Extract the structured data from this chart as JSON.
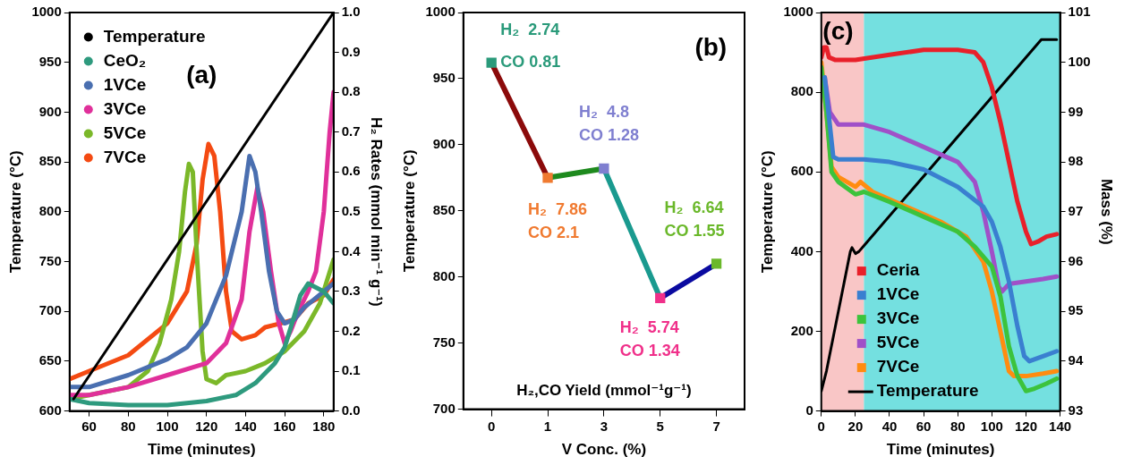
{
  "chart_data": [
    {
      "type": "line",
      "xlabel": "Time (minutes)",
      "ylabel": "Temperature (°C)",
      "y2label": "H₂ Rates (mmol min⁻¹ g⁻¹)",
      "xlim": [
        50,
        185
      ],
      "xticks": [
        60,
        80,
        100,
        120,
        140,
        160,
        180
      ],
      "ylim": [
        600,
        1000
      ],
      "yticks": [
        600,
        650,
        700,
        750,
        800,
        850,
        900,
        950,
        1000
      ],
      "y2lim": [
        0,
        1
      ],
      "y2ticks": [
        {
          "value": 0,
          "label": "0.0"
        },
        0.1,
        0.2,
        0.3,
        0.4,
        0.5,
        0.6,
        0.7,
        0.8,
        0.9,
        {
          "value": 1,
          "label": "1.0"
        }
      ],
      "legend": "top left",
      "annotations": [
        "(a)"
      ],
      "series": [
        {
          "name": "Temperature",
          "color": "#000000",
          "axis": "y",
          "x": [
            52,
            185
          ],
          "values": [
            612,
            1000
          ]
        },
        {
          "name": "CeO₂",
          "color": "#2e9a7e",
          "axis": "y2",
          "x": [
            50,
            60,
            80,
            100,
            120,
            135,
            145,
            155,
            160,
            165,
            168,
            172,
            176,
            180,
            185
          ],
          "values": [
            0.03,
            0.02,
            0.015,
            0.015,
            0.025,
            0.04,
            0.07,
            0.12,
            0.16,
            0.24,
            0.29,
            0.32,
            0.31,
            0.3,
            0.27
          ]
        },
        {
          "name": "1VCe",
          "color": "#4a6fb0",
          "axis": "y2",
          "x": [
            50,
            60,
            80,
            100,
            110,
            120,
            130,
            138,
            142,
            145,
            148,
            152,
            156,
            160,
            165,
            170,
            175,
            180,
            185
          ],
          "values": [
            0.06,
            0.06,
            0.09,
            0.13,
            0.16,
            0.22,
            0.34,
            0.5,
            0.64,
            0.6,
            0.5,
            0.35,
            0.25,
            0.22,
            0.23,
            0.26,
            0.28,
            0.3,
            0.32
          ]
        },
        {
          "name": "3VCe",
          "color": "#e0309a",
          "axis": "y2",
          "x": [
            50,
            60,
            80,
            100,
            120,
            130,
            138,
            142,
            146,
            149,
            153,
            157,
            160,
            163,
            167,
            172,
            176,
            180,
            183,
            185
          ],
          "values": [
            0.04,
            0.04,
            0.06,
            0.09,
            0.12,
            0.17,
            0.28,
            0.45,
            0.56,
            0.5,
            0.35,
            0.22,
            0.17,
            0.2,
            0.25,
            0.3,
            0.35,
            0.5,
            0.7,
            0.8
          ]
        },
        {
          "name": "5VCe",
          "color": "#7bb829",
          "axis": "y2",
          "x": [
            50,
            60,
            80,
            90,
            96,
            102,
            106,
            109,
            111,
            113,
            115,
            118,
            120,
            125,
            130,
            140,
            145,
            150,
            160,
            170,
            178,
            185
          ],
          "values": [
            0.03,
            0.04,
            0.06,
            0.1,
            0.17,
            0.28,
            0.4,
            0.55,
            0.62,
            0.6,
            0.4,
            0.15,
            0.08,
            0.07,
            0.09,
            0.1,
            0.11,
            0.12,
            0.15,
            0.2,
            0.27,
            0.38
          ]
        },
        {
          "name": "7VCe",
          "color": "#f44a12",
          "axis": "y2",
          "x": [
            50,
            60,
            80,
            100,
            110,
            115,
            118,
            121,
            124,
            127,
            130,
            133,
            138,
            145,
            150,
            158,
            165,
            172,
            180,
            185
          ],
          "values": [
            0.08,
            0.1,
            0.14,
            0.22,
            0.3,
            0.42,
            0.58,
            0.67,
            0.64,
            0.5,
            0.3,
            0.2,
            0.18,
            0.19,
            0.21,
            0.22,
            0.23,
            0.27,
            0.29,
            0.33
          ]
        }
      ]
    },
    {
      "type": "line",
      "xlabel": "V Conc. (%)",
      "ylabel": "Temperature (°C)",
      "categories": [
        "0",
        "1",
        "3",
        "5",
        "7"
      ],
      "ylim": [
        700,
        1000
      ],
      "yticks": [
        700,
        750,
        800,
        850,
        900,
        950,
        1000
      ],
      "annotations": [
        "(b)",
        "H₂,CO Yield (mmol⁻¹g⁻¹)",
        {
          "text": "H₂  2.74\nCO 0.81",
          "x": "0",
          "y": 962
        },
        {
          "text": "H₂  7.86\nCO 2.1",
          "x": "1",
          "y": 875
        },
        {
          "text": "H₂  4.8\nCO 1.28",
          "x": "3",
          "y": 882
        },
        {
          "text": "H₂  5.74\nCO 1.34",
          "x": "5",
          "y": 784
        },
        {
          "text": "H₂  6.64\nCO 1.55",
          "x": "7",
          "y": 810
        }
      ],
      "series": [
        {
          "color": "#8b0a0a",
          "values": [
            962,
            875,
            null,
            null,
            null
          ]
        },
        {
          "color": "#1e8a1e",
          "values": [
            null,
            875,
            882,
            null,
            null
          ]
        },
        {
          "color": "#1a9a8f",
          "values": [
            null,
            null,
            882,
            784,
            null
          ]
        },
        {
          "color": "#0a0aa0",
          "values": [
            null,
            null,
            null,
            784,
            810
          ]
        },
        {
          "type": "scatter",
          "marker": "square",
          "color": "#2a9a7a",
          "colors": [
            "#2a9a7a",
            "#f07a30",
            "#7f7fd0",
            "#f0308a",
            "#6ab82a"
          ],
          "values": [
            962,
            875,
            882,
            784,
            810
          ]
        }
      ]
    },
    {
      "type": "line",
      "xlabel": "Time (minutes)",
      "ylabel": "Temperature (°C)",
      "y2label": "Mass (%)",
      "xlim": [
        0,
        140
      ],
      "xticks": [
        0,
        20,
        40,
        60,
        80,
        100,
        120,
        140
      ],
      "ylim": [
        0,
        1000
      ],
      "yticks": [
        0,
        200,
        400,
        600,
        800,
        1000
      ],
      "y2lim": [
        93,
        101
      ],
      "y2ticks": [
        93,
        94,
        95,
        96,
        97,
        98,
        99,
        100,
        101
      ],
      "legend": "bottom left",
      "annotations": [
        "(c)"
      ],
      "bands": [
        {
          "axis": "x",
          "from": 0,
          "to": 25,
          "color": "#f9c6c6"
        },
        {
          "axis": "x",
          "from": 25,
          "to": 140,
          "color": "#74e0e0"
        }
      ],
      "series": [
        {
          "name": "Ceria",
          "color": "#e8202a",
          "axis": "y2",
          "x": [
            0,
            1.5,
            3,
            4.5,
            8,
            20,
            40,
            60,
            80,
            90,
            95,
            100,
            105,
            110,
            115,
            120,
            123,
            127,
            132,
            138
          ],
          "values": [
            100.1,
            100.3,
            100.3,
            100.1,
            100.05,
            100.05,
            100.15,
            100.25,
            100.25,
            100.2,
            100.0,
            99.5,
            98.8,
            98.0,
            97.2,
            96.6,
            96.35,
            96.4,
            96.5,
            96.55
          ]
        },
        {
          "name": "1VCe",
          "color": "#3a7fd0",
          "axis": "y2",
          "x": [
            2,
            7,
            10,
            25,
            40,
            60,
            80,
            95,
            100,
            105,
            110,
            115,
            119,
            122,
            130,
            138
          ],
          "values": [
            99.7,
            98.1,
            98.05,
            98.05,
            98.0,
            97.85,
            97.5,
            97.1,
            96.8,
            96.3,
            95.6,
            94.7,
            94.1,
            94.0,
            94.1,
            94.2
          ]
        },
        {
          "name": "3VCe",
          "color": "#3cc33c",
          "axis": "y2",
          "x": [
            0,
            3,
            6,
            10,
            20,
            25,
            40,
            60,
            80,
            90,
            100,
            105,
            110,
            115,
            120,
            125,
            132,
            138
          ],
          "values": [
            99.9,
            99.0,
            97.8,
            97.6,
            97.35,
            97.4,
            97.2,
            96.9,
            96.6,
            96.3,
            95.9,
            95.3,
            94.3,
            93.7,
            93.4,
            93.45,
            93.55,
            93.65
          ]
        },
        {
          "name": "5VCe",
          "color": "#a050c8",
          "axis": "y2",
          "x": [
            2,
            5,
            10,
            25,
            40,
            60,
            80,
            90,
            95,
            100,
            104,
            106,
            110,
            120,
            130,
            138
          ],
          "values": [
            99.7,
            99.0,
            98.75,
            98.75,
            98.6,
            98.3,
            98.0,
            97.6,
            97.0,
            96.2,
            95.5,
            95.4,
            95.55,
            95.6,
            95.65,
            95.7
          ]
        },
        {
          "name": "7VCe",
          "color": "#ff8c10",
          "axis": "y2",
          "x": [
            0,
            3,
            6,
            10,
            20,
            23,
            30,
            50,
            70,
            85,
            95,
            100,
            105,
            110,
            113,
            120,
            130,
            138
          ],
          "values": [
            100.0,
            99.0,
            97.9,
            97.7,
            97.5,
            97.6,
            97.4,
            97.1,
            96.8,
            96.5,
            96.0,
            95.4,
            94.6,
            93.8,
            93.7,
            93.7,
            93.75,
            93.8
          ]
        },
        {
          "name": "Temperature",
          "color": "#000000",
          "axis": "y",
          "x": [
            0,
            3,
            10,
            17,
            18,
            20,
            22,
            25,
            129,
            138
          ],
          "values": [
            50,
            100,
            250,
            400,
            410,
            395,
            400,
            415,
            932,
            932
          ]
        }
      ]
    }
  ]
}
